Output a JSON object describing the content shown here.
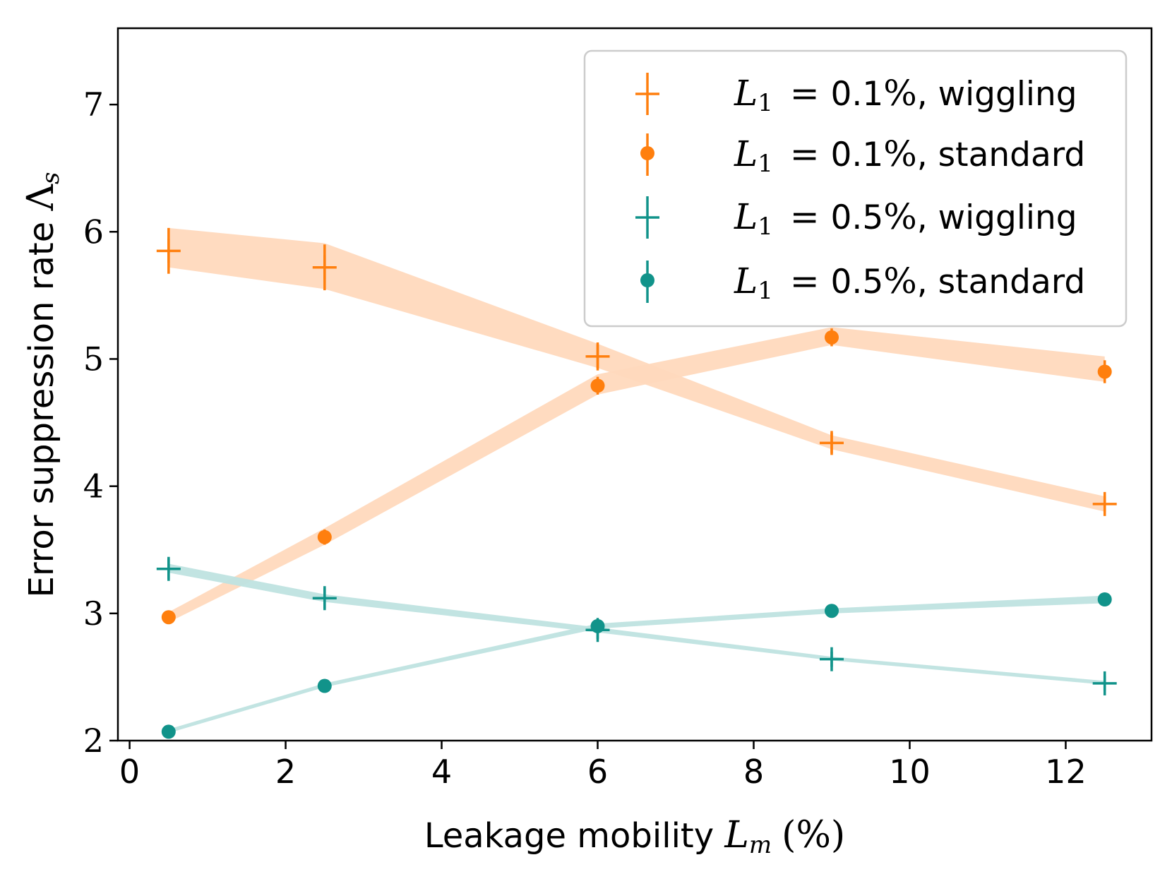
{
  "chart_data": {
    "type": "line",
    "title": "",
    "xlabel": "Leakage mobility L_m (%)",
    "ylabel": "Error suppression rate Λ_s",
    "xlabel_text": "Leakage mobility ",
    "xlabel_math": "L",
    "xlabel_sub": "m",
    "xlabel_unit": "(%)",
    "ylabel_text": "Error suppression rate ",
    "ylabel_math": "Λ",
    "ylabel_sub": "s",
    "xlim": [
      -0.15,
      13.1
    ],
    "ylim": [
      2,
      7.6
    ],
    "xticks": [
      0,
      2,
      4,
      6,
      8,
      10,
      12
    ],
    "xtick_labels": [
      "0",
      "2",
      "4",
      "6",
      "8",
      "10",
      "12"
    ],
    "yticks": [
      2,
      3,
      4,
      5,
      6,
      7
    ],
    "ytick_labels": [
      "2",
      "3",
      "4",
      "5",
      "6",
      "7"
    ],
    "grid": false,
    "legend_position": "top-right",
    "x": [
      0.5,
      2.5,
      6,
      9,
      12.5
    ],
    "colors": {
      "orange": "#ff7f0e",
      "orange_band": "#ffd9bd",
      "teal": "#11938a",
      "teal_band": "#bfe3e0"
    },
    "series": [
      {
        "name": "L1 = 0.1%, wiggling",
        "legend_rhs": "0.1",
        "legend_suffix": ", wiggling",
        "marker": "plus",
        "color": "#ff7f0e",
        "band_color": "#ffd9bd",
        "values": [
          5.85,
          5.72,
          5.02,
          4.34,
          3.86
        ],
        "errors": [
          0.18,
          0.18,
          0.11,
          0.08,
          0.06
        ],
        "band_low": [
          5.72,
          5.55,
          4.93,
          4.29,
          3.8
        ],
        "band_high": [
          6.03,
          5.91,
          5.12,
          4.4,
          3.92
        ]
      },
      {
        "name": "L1 = 0.1%, standard",
        "legend_rhs": "0.1",
        "legend_suffix": ", standard",
        "marker": "circle",
        "color": "#ff7f0e",
        "band_color": "#ffd9bd",
        "values": [
          2.97,
          3.6,
          4.79,
          5.17,
          4.9
        ],
        "errors": [
          0.03,
          0.06,
          0.07,
          0.07,
          0.09
        ],
        "band_low": [
          2.93,
          3.54,
          4.72,
          5.11,
          4.82
        ],
        "band_high": [
          3.01,
          3.67,
          4.88,
          5.25,
          5.02
        ]
      },
      {
        "name": "L1 = 0.5%, wiggling",
        "legend_rhs": "0.5",
        "legend_suffix": ", wiggling",
        "marker": "plus",
        "color": "#11938a",
        "band_color": "#bfe3e0",
        "values": [
          3.35,
          3.12,
          2.87,
          2.64,
          2.45
        ],
        "errors": [
          0.08,
          0.08,
          0.07,
          0.06,
          0.06
        ],
        "band_low": [
          3.32,
          3.09,
          2.85,
          2.63,
          2.44
        ],
        "band_high": [
          3.39,
          3.15,
          2.89,
          2.66,
          2.47
        ]
      },
      {
        "name": "L1 = 0.5%, standard",
        "legend_rhs": "0.5",
        "legend_suffix": ", standard",
        "marker": "circle",
        "color": "#11938a",
        "band_color": "#bfe3e0",
        "values": [
          2.07,
          2.43,
          2.9,
          3.02,
          3.11
        ],
        "errors": [
          0.01,
          0.01,
          0.05,
          0.02,
          0.02
        ],
        "band_low": [
          2.06,
          2.42,
          2.88,
          3.0,
          3.08
        ],
        "band_high": [
          2.09,
          2.45,
          2.92,
          3.04,
          3.14
        ]
      }
    ]
  }
}
